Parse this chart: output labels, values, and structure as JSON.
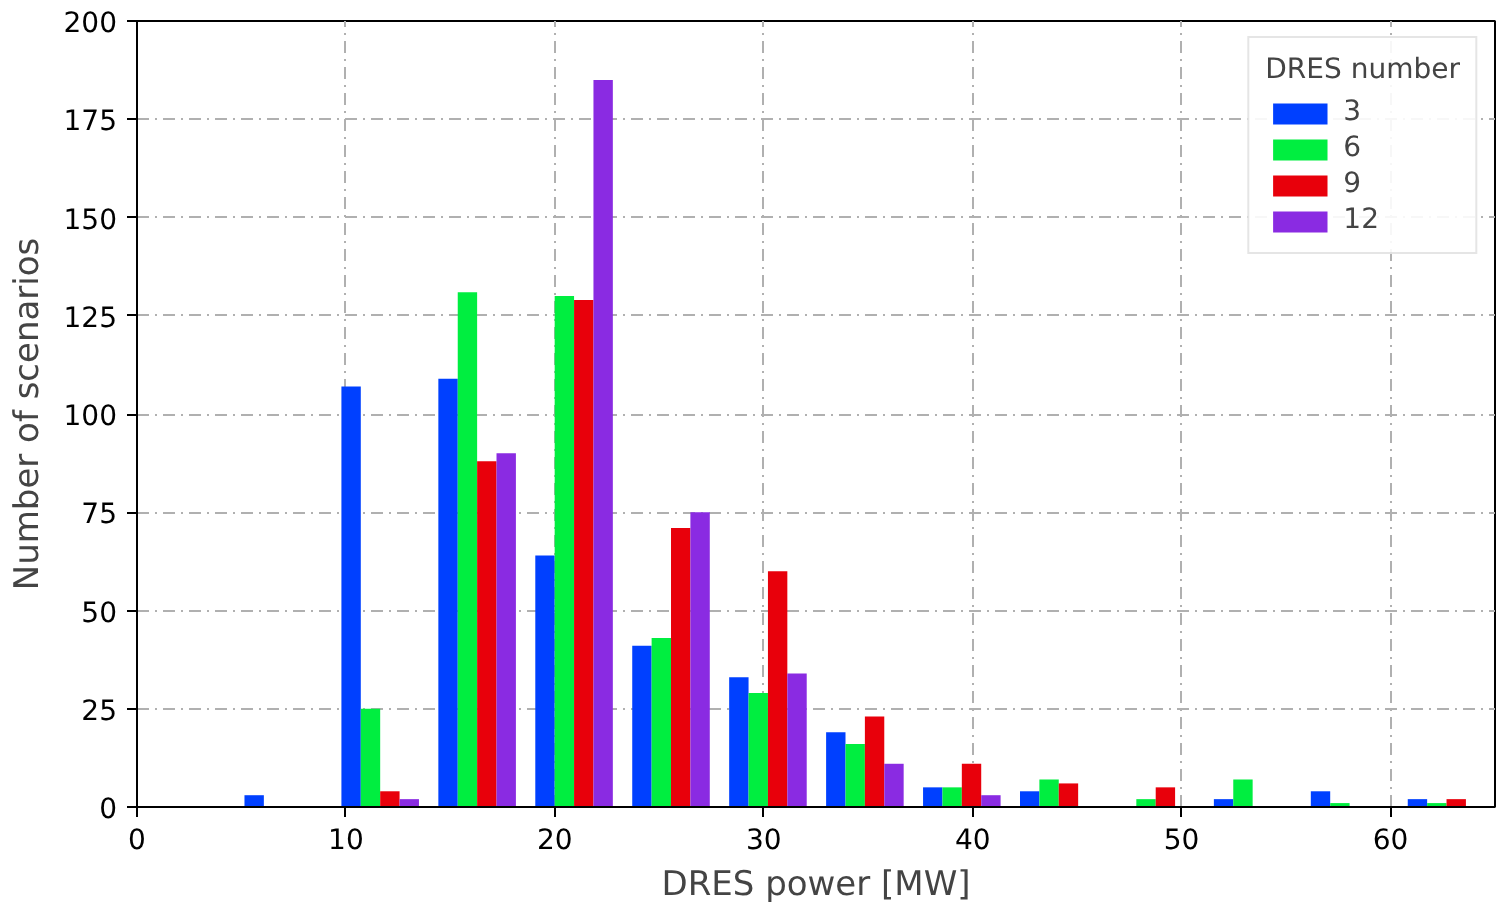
{
  "chart_data": {
    "type": "histogram",
    "xlabel": "DRES power [MW]",
    "ylabel": "Number of scenarios",
    "legend_title": "DRES number",
    "legend": "top right",
    "grid": true,
    "bins": [
      4.68,
      9.32,
      13.96,
      18.6,
      23.24,
      27.88,
      32.52,
      37.16,
      41.8,
      46.44,
      51.08,
      55.72,
      60.36,
      65.0
    ],
    "series": [
      {
        "name": "3",
        "color": "#0040ff",
        "values": [
          3,
          107,
          109,
          64,
          41,
          33,
          19,
          5,
          4,
          0,
          2,
          4,
          2
        ]
      },
      {
        "name": "6",
        "color": "#00ee40",
        "values": [
          0,
          25,
          131,
          130,
          43,
          29,
          16,
          5,
          7,
          2,
          7,
          1,
          1
        ]
      },
      {
        "name": "9",
        "color": "#e8000b",
        "values": [
          0,
          4,
          88,
          129,
          71,
          60,
          23,
          11,
          6,
          5,
          0,
          0,
          2
        ]
      },
      {
        "name": "12",
        "color": "#8a2be2",
        "values": [
          0,
          2,
          90,
          185,
          75,
          34,
          11,
          3,
          0,
          0,
          0,
          0,
          0
        ]
      }
    ],
    "xlim": [
      0,
      65
    ],
    "ylim": [
      0,
      200
    ],
    "xticks": [
      0,
      10,
      20,
      30,
      40,
      50,
      60
    ],
    "yticks": [
      0,
      25,
      50,
      75,
      100,
      125,
      150,
      175,
      200
    ]
  }
}
